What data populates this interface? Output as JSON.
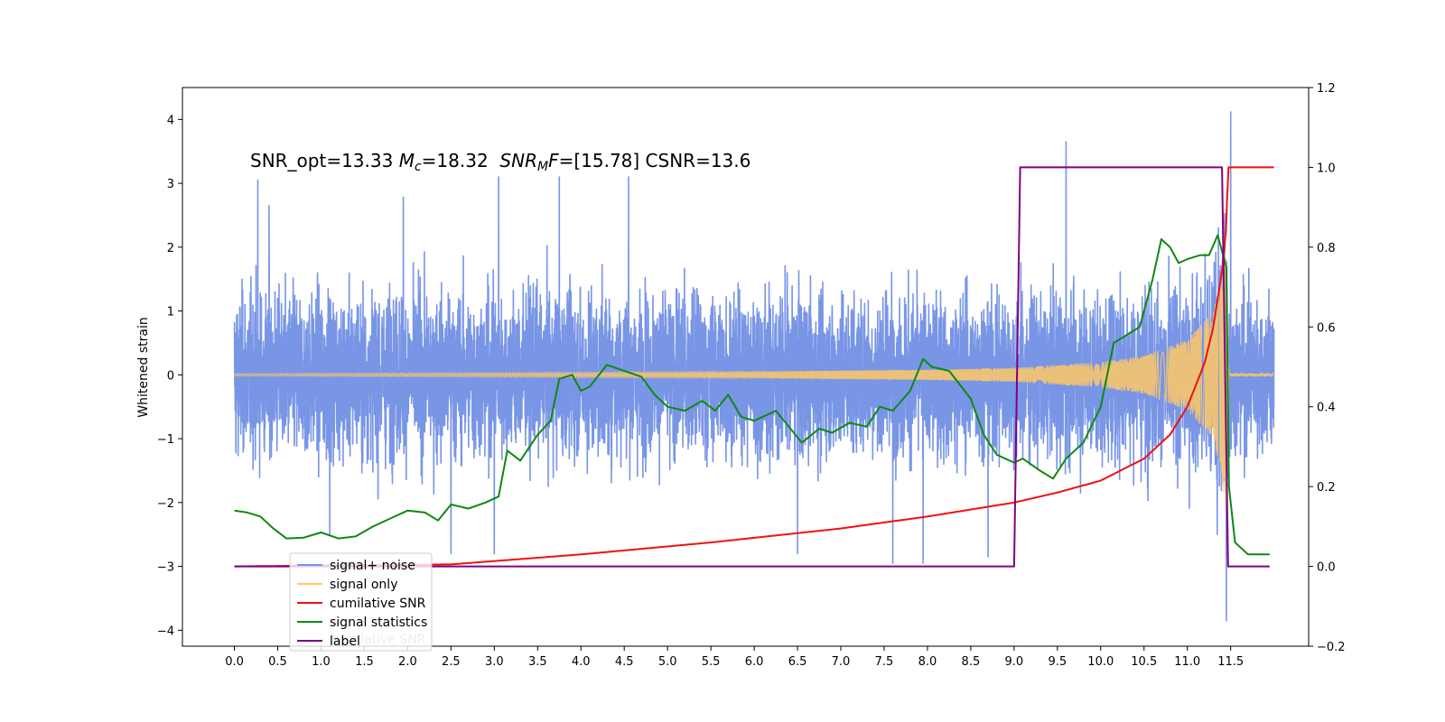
{
  "chart_data": {
    "type": "line",
    "ylabel": "Whitened strain",
    "annotation": {
      "parts": [
        {
          "text": "SNR_opt=13.33 ",
          "style": "normal"
        },
        {
          "text": "M",
          "style": "italic"
        },
        {
          "text": "c",
          "style": "italic-sub"
        },
        {
          "text": "=18.32  ",
          "style": "normal"
        },
        {
          "text": "SNR",
          "style": "italic"
        },
        {
          "text": "M",
          "style": "italic-sub"
        },
        {
          "text": "F",
          "style": "italic"
        },
        {
          "text": "=[15.78] CSNR=13.6",
          "style": "normal"
        }
      ]
    },
    "x_ticks": [
      "0.0",
      "0.5",
      "1.0",
      "1.5",
      "2.0",
      "2.5",
      "3.0",
      "3.5",
      "4.0",
      "4.5",
      "5.0",
      "5.5",
      "6.0",
      "6.5",
      "7.0",
      "7.5",
      "8.0",
      "8.5",
      "9.0",
      "9.5",
      "10.0",
      "10.5",
      "11.0",
      "11.5"
    ],
    "x_tick_values": [
      0,
      0.5,
      1,
      1.5,
      2,
      2.5,
      3,
      3.5,
      4,
      4.5,
      5,
      5.5,
      6,
      6.5,
      7,
      7.5,
      8,
      8.5,
      9,
      9.5,
      10,
      10.5,
      11,
      11.5
    ],
    "xlim": [
      -0.6,
      12.4
    ],
    "y_left_ticks": [
      "−4",
      "−3",
      "−2",
      "−1",
      "0",
      "1",
      "2",
      "3",
      "4"
    ],
    "y_left_tick_values": [
      -4,
      -3,
      -2,
      -1,
      0,
      1,
      2,
      3,
      4
    ],
    "ylim_left": [
      -4.25,
      4.5
    ],
    "y_right_ticks": [
      "−0.2",
      "0.0",
      "0.2",
      "0.4",
      "0.6",
      "0.8",
      "1.0",
      "1.2"
    ],
    "y_right_tick_values": [
      -0.2,
      0,
      0.2,
      0.4,
      0.6,
      0.8,
      1.0,
      1.2
    ],
    "ylim_right": [
      -0.2,
      1.2
    ],
    "grid": false,
    "legend": {
      "placement": "lower-left",
      "entries": [
        {
          "label": "signal+ noise",
          "color": "#7895e6"
        },
        {
          "label": "signal only",
          "color": "#ffc966"
        },
        {
          "label": "cumilative SNR",
          "color": "#ee1111"
        },
        {
          "label": "signal statistics",
          "color": "#118811"
        },
        {
          "label": "label",
          "color": "#800080"
        }
      ],
      "hidden_label": "cumilative SNR"
    },
    "series": [
      {
        "name": "signal+ noise",
        "axis": "left",
        "color": "#7895e6",
        "x_range": [
          0,
          12.0
        ],
        "typical_amplitude": 1.0,
        "peaks": [
          [
            0.27,
            3.05
          ],
          [
            0.4,
            2.65
          ],
          [
            1.95,
            2.78
          ],
          [
            2.5,
            2.65
          ],
          [
            3.05,
            3.1
          ],
          [
            3.75,
            3.1
          ],
          [
            4.55,
            3.1
          ],
          [
            9.6,
            3.65
          ],
          [
            11.45,
            4.12
          ],
          [
            11.5,
            4.12
          ]
        ],
        "troughs": [
          [
            1.1,
            -2.5
          ],
          [
            2.5,
            -2.8
          ],
          [
            3.0,
            -2.8
          ],
          [
            6.5,
            -2.8
          ],
          [
            7.6,
            -2.95
          ],
          [
            7.95,
            -2.95
          ],
          [
            8.7,
            -2.85
          ],
          [
            11.45,
            -3.85
          ]
        ]
      },
      {
        "name": "signal only",
        "axis": "left",
        "color": "#ffc966",
        "x_range": [
          0,
          12.0
        ],
        "merger_time": 11.45,
        "envelope": [
          [
            0,
            0.02
          ],
          [
            4,
            0.04
          ],
          [
            6,
            0.05
          ],
          [
            8,
            0.08
          ],
          [
            9,
            0.11
          ],
          [
            10,
            0.2
          ],
          [
            10.5,
            0.3
          ],
          [
            11.0,
            0.55
          ],
          [
            11.3,
            1.0
          ],
          [
            11.4,
            1.6
          ],
          [
            11.45,
            2.2
          ],
          [
            11.48,
            0.02
          ],
          [
            12.0,
            0.02
          ]
        ]
      },
      {
        "name": "cumilative SNR",
        "axis": "right",
        "color": "#ee1111",
        "x": [
          0,
          2.5,
          4.0,
          5.5,
          7.0,
          8.0,
          9.0,
          9.5,
          10.0,
          10.5,
          10.8,
          11.0,
          11.2,
          11.3,
          11.4,
          11.45,
          11.47,
          11.5,
          12.0
        ],
        "y": [
          0,
          0.005,
          0.03,
          0.06,
          0.095,
          0.125,
          0.16,
          0.185,
          0.215,
          0.27,
          0.33,
          0.4,
          0.51,
          0.6,
          0.74,
          0.85,
          1.0,
          1.0,
          1.0
        ]
      },
      {
        "name": "signal statistics",
        "axis": "right",
        "color": "#118811",
        "x": [
          0,
          0.15,
          0.3,
          0.45,
          0.6,
          0.8,
          1.0,
          1.2,
          1.4,
          1.6,
          1.8,
          2.0,
          2.2,
          2.35,
          2.5,
          2.7,
          2.9,
          3.05,
          3.15,
          3.3,
          3.5,
          3.65,
          3.75,
          3.9,
          4.0,
          4.1,
          4.3,
          4.5,
          4.7,
          4.85,
          5.0,
          5.2,
          5.4,
          5.55,
          5.7,
          5.85,
          6.0,
          6.25,
          6.4,
          6.55,
          6.75,
          6.9,
          7.1,
          7.3,
          7.45,
          7.6,
          7.8,
          7.95,
          8.05,
          8.25,
          8.5,
          8.65,
          8.8,
          9.0,
          9.1,
          9.3,
          9.45,
          9.6,
          9.8,
          10.0,
          10.15,
          10.3,
          10.45,
          10.6,
          10.7,
          10.8,
          10.9,
          11.0,
          11.15,
          11.25,
          11.35,
          11.45,
          11.48,
          11.55,
          11.7,
          11.95
        ],
        "y": [
          0.14,
          0.135,
          0.125,
          0.095,
          0.07,
          0.072,
          0.085,
          0.07,
          0.075,
          0.1,
          0.12,
          0.14,
          0.135,
          0.115,
          0.155,
          0.145,
          0.16,
          0.175,
          0.29,
          0.265,
          0.33,
          0.365,
          0.47,
          0.48,
          0.44,
          0.45,
          0.505,
          0.49,
          0.475,
          0.43,
          0.4,
          0.39,
          0.415,
          0.39,
          0.43,
          0.375,
          0.365,
          0.39,
          0.35,
          0.31,
          0.345,
          0.335,
          0.36,
          0.35,
          0.4,
          0.39,
          0.44,
          0.52,
          0.5,
          0.49,
          0.42,
          0.33,
          0.28,
          0.26,
          0.27,
          0.24,
          0.22,
          0.27,
          0.31,
          0.4,
          0.56,
          0.58,
          0.6,
          0.72,
          0.82,
          0.8,
          0.76,
          0.77,
          0.78,
          0.78,
          0.83,
          0.75,
          0.2,
          0.06,
          0.03,
          0.03
        ]
      },
      {
        "name": "label",
        "axis": "right",
        "color": "#800080",
        "x": [
          0,
          9.0,
          9.07,
          11.4,
          11.47,
          11.95
        ],
        "y": [
          0,
          0,
          1,
          1,
          0,
          0
        ]
      }
    ]
  }
}
